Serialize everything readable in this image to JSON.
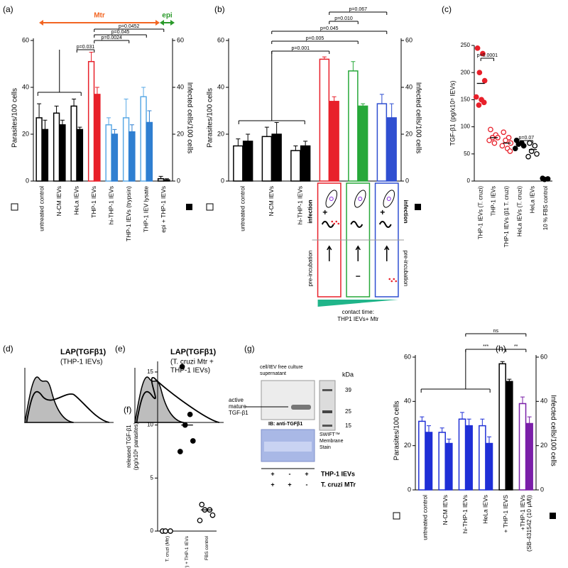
{
  "chart_data": [
    {
      "type": "bar",
      "panel": "(a)",
      "ylabel": "Parasites/100 cells",
      "y2label": "Infected cells/100 cells",
      "categories": [
        "untreated control",
        "N-CM IEVs",
        "HeLa IEVs",
        "THP-1 IEVs",
        "hi-THP-1 IEVs",
        "THP-1 IEVs (trypsin)",
        "THP-1 IEV lysate",
        "epi + THP-1 IEVs"
      ],
      "series": [
        {
          "style": "open",
          "colors": [
            "#000000",
            "#000000",
            "#000000",
            "#e8202a",
            "#5aa9e6",
            "#5aa9e6",
            "#5aa9e6",
            "#000000"
          ],
          "values": [
            27,
            29,
            32,
            51,
            24,
            27,
            36,
            1
          ],
          "errors": [
            6,
            3,
            3,
            4,
            3,
            8,
            4,
            1
          ]
        },
        {
          "style": "filled",
          "axis": "y2",
          "colors": [
            "#000000",
            "#000000",
            "#000000",
            "#e8202a",
            "#2f7fd1",
            "#2f7fd1",
            "#2f7fd1",
            "#000000"
          ],
          "values": [
            22,
            24,
            22,
            37,
            20,
            21,
            25,
            0.5
          ],
          "errors": [
            4,
            2,
            1,
            3,
            2,
            3,
            5,
            0.5
          ]
        }
      ],
      "ylim": [
        0,
        60
      ],
      "yticks": [
        0,
        20,
        40,
        60
      ],
      "y2lim": [
        0,
        60
      ],
      "y2ticks": [
        0,
        20,
        40,
        60
      ],
      "annotations": [
        "Mtr",
        "epi",
        "p=0.031",
        "p=0.045",
        "p=0.0452",
        "p=0.0024"
      ]
    },
    {
      "type": "bar",
      "panel": "(b)",
      "ylabel": "Parasites/100 cells",
      "y2label": "Infected cells/100 cells",
      "categories": [
        "untreated control",
        "N-CM IEVs",
        "hi-THP-1 IEVs",
        null,
        null,
        null
      ],
      "series": [
        {
          "style": "open",
          "colors": [
            "#000000",
            "#000000",
            "#000000",
            "#e8202a",
            "#27a839",
            "#2f4fd1"
          ],
          "values": [
            15,
            19,
            13,
            52,
            47,
            33
          ],
          "errors": [
            3,
            4,
            2,
            1,
            4,
            4
          ]
        },
        {
          "style": "filled",
          "axis": "y2",
          "colors": [
            "#000000",
            "#000000",
            "#000000",
            "#e8202a",
            "#27a839",
            "#2f4fd1"
          ],
          "values": [
            17,
            20,
            15,
            34,
            32,
            27
          ],
          "errors": [
            3,
            5,
            2,
            2,
            1,
            6
          ]
        }
      ],
      "ylim": [
        0,
        60
      ],
      "yticks": [
        0,
        20,
        40,
        60
      ],
      "y2lim": [
        0,
        60
      ],
      "y2ticks": [
        0,
        20,
        40,
        60
      ],
      "annotations": [
        "p=0.001",
        "p=0.005",
        "p=0.045",
        "p=0.010",
        "p=0.067"
      ],
      "schematic": {
        "rows": [
          "infection",
          "pre-incubation"
        ],
        "plus": "+",
        "minus": "−",
        "caption": [
          "contact time:",
          "THP1 IEVs+ Mtr"
        ]
      }
    },
    {
      "type": "dot",
      "panel": "(c)",
      "ylabel": "TGF-β1 (pg/x10⁵ IEVs)",
      "categories": [
        "THP-1 IEVs (T. cruzi)",
        "THP-1 IEVs",
        "THP-1 IEVs (β1 T. cruzi)",
        "HeLa IEVs (T. cruzi)",
        "HeLa IEVs",
        "10 % FBS control"
      ],
      "colors": [
        "#e8202a",
        "#e8202a",
        "#e8202a",
        "#000000",
        "#000000",
        "#000000"
      ],
      "filled": [
        true,
        false,
        false,
        true,
        false,
        true
      ],
      "points": [
        [
          245,
          235,
          200,
          185,
          155,
          150,
          145,
          140
        ],
        [
          95,
          85,
          80,
          80,
          75,
          70
        ],
        [
          90,
          80,
          75,
          70,
          65,
          60,
          55
        ],
        [
          75,
          70,
          68,
          65,
          60
        ],
        [
          70,
          65,
          55,
          50,
          45
        ],
        [
          5,
          4,
          3
        ]
      ],
      "means": [
        180,
        80,
        70,
        68,
        58,
        4
      ],
      "ylim": [
        0,
        250
      ],
      "yticks": [
        0,
        50,
        100,
        150,
        200,
        250
      ],
      "annotations": [
        "p<0.0001",
        "p=0.07"
      ]
    },
    {
      "type": "flow",
      "panel": "(d)",
      "title": "LAP(TGFβ1)",
      "subtitle": [
        "(THP-1 IEVs)"
      ]
    },
    {
      "type": "flow",
      "panel": "(e)",
      "title": "LAP(TGFβ1)",
      "subtitle": [
        "(T. cruzi Mtr +",
        "THP-1 IEVs)"
      ]
    },
    {
      "type": "dot",
      "panel": "(f)",
      "ylabel": [
        "released TGF-β1",
        "(pg/x10⁶ parasites)"
      ],
      "categories": [
        "T. cruzi (Mtr)",
        "T. cruzi (Mtr) + THP-1 IEVs",
        "FBS control"
      ],
      "colors": [
        "#000000",
        "#000000",
        "#000000"
      ],
      "filled": [
        false,
        true,
        false
      ],
      "points": [
        [
          0,
          0,
          0
        ],
        [
          15.5,
          11,
          10,
          8.5,
          7.5
        ],
        [
          2.5,
          2,
          2,
          1.5,
          1
        ]
      ],
      "means": [
        null,
        10,
        2
      ],
      "ylim": [
        0,
        16
      ],
      "yticks": [
        0,
        5,
        10,
        15
      ],
      "annotations": []
    },
    {
      "type": "blot",
      "panel": "(g)",
      "header": [
        "cell/IEV free culture",
        "supernatant"
      ],
      "band_label": [
        "active",
        "mature",
        "TGF-β1"
      ],
      "unit": "kDa",
      "markers": [
        "39",
        "25",
        "15"
      ],
      "antibody": "IB: anti-TGFβ1",
      "stain": [
        "SWIFT™",
        "Membrane",
        "Stain"
      ],
      "rows": [
        {
          "label": "THP-1 IEVs",
          "signs": [
            "+",
            "-",
            "+"
          ]
        },
        {
          "label": "T. cruzi MTr",
          "signs": [
            "+",
            "+",
            "-"
          ]
        }
      ]
    },
    {
      "type": "bar",
      "panel": "(h)",
      "ylabel": "Parasites/100 cells",
      "y2label": "Infected cells/100 cells",
      "categories": [
        "untreated control",
        "N-CM IEVs",
        "hi-THP-1 IEVs",
        "HeLa IEVs",
        "+ THP-1 IEVS",
        [
          "+THP-1 IEVs",
          "(SB-431542 (10 μM))"
        ]
      ],
      "series": [
        {
          "style": "open",
          "colors": [
            "#1f2fd6",
            "#1f2fd6",
            "#1f2fd6",
            "#1f2fd6",
            "#000000",
            "#7a1fa8"
          ],
          "values": [
            31,
            26,
            32,
            29,
            57,
            39
          ],
          "errors": [
            2,
            2,
            3,
            3,
            1,
            3
          ]
        },
        {
          "style": "filled",
          "axis": "y2",
          "colors": [
            "#1f2fd6",
            "#1f2fd6",
            "#1f2fd6",
            "#1f2fd6",
            "#000000",
            "#7a1fa8"
          ],
          "values": [
            26,
            21,
            29,
            21,
            49,
            30
          ],
          "errors": [
            3,
            2,
            3,
            3,
            1,
            3
          ]
        }
      ],
      "ylim": [
        0,
        60
      ],
      "yticks": [
        0,
        20,
        40,
        60
      ],
      "y2lim": [
        0,
        60
      ],
      "y2ticks": [
        0,
        20,
        40,
        60
      ],
      "annotations": [
        "ns",
        "***",
        "**"
      ]
    }
  ]
}
